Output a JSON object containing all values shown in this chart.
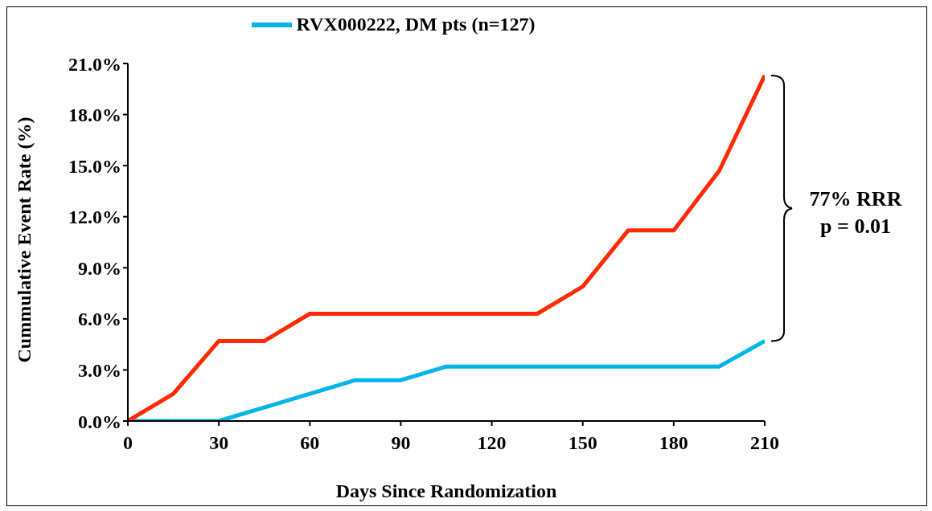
{
  "chart_data": {
    "type": "line",
    "xlabel": "Days Since Randomization",
    "ylabel": "Cummulative Event Rate (%)",
    "x": [
      0,
      15,
      30,
      45,
      60,
      75,
      90,
      105,
      120,
      135,
      150,
      165,
      180,
      195,
      210
    ],
    "series": [
      {
        "name": "RVX000222, DM pts (n=127)",
        "color": "#00b4e6",
        "values": [
          0,
          0,
          0,
          0.8,
          1.6,
          2.4,
          2.4,
          3.2,
          3.2,
          3.2,
          3.2,
          3.2,
          3.2,
          3.2,
          4.7
        ]
      },
      {
        "color": "#ff2a00",
        "values": [
          0,
          1.6,
          4.7,
          4.7,
          6.3,
          6.3,
          6.3,
          6.3,
          6.3,
          6.3,
          7.9,
          11.2,
          11.2,
          14.7,
          20.3
        ]
      }
    ],
    "xlim": [
      0,
      210
    ],
    "xticks": [
      0,
      30,
      60,
      90,
      120,
      150,
      180,
      210
    ],
    "ylim": [
      0,
      21
    ],
    "yticks": [
      {
        "value": 0,
        "label": "0.0%"
      },
      {
        "value": 3,
        "label": "3.0%"
      },
      {
        "value": 6,
        "label": "6.0%"
      },
      {
        "value": 9,
        "label": "9.0%"
      },
      {
        "value": 12,
        "label": "12.0%"
      },
      {
        "value": 15,
        "label": "15.0%"
      },
      {
        "value": 18,
        "label": "18.0%"
      },
      {
        "value": 21,
        "label": "21.0%"
      }
    ],
    "annotations": [
      "77% RRR",
      "p = 0.01"
    ],
    "legend": "top",
    "grid": false,
    "marker": "none",
    "line_style": "solid"
  }
}
